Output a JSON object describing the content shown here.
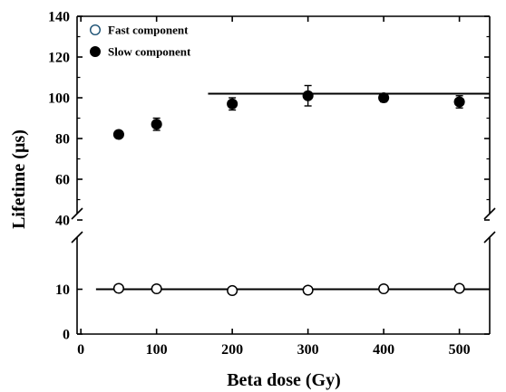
{
  "chart_data": {
    "type": "scatter",
    "xlabel": "Beta dose (Gy)",
    "ylabel": "Lifetime (µs)",
    "x_ticks": [
      0,
      100,
      200,
      300,
      400,
      500
    ],
    "y_ticks_upper": [
      40,
      60,
      80,
      100,
      120,
      140
    ],
    "y_ticks_lower": [
      0,
      10
    ],
    "xlim": [
      -5,
      540
    ],
    "y_axis_break": {
      "lower_range": [
        0,
        20
      ],
      "upper_range": [
        40,
        140
      ]
    },
    "legend_position": "top-left",
    "series": [
      {
        "name": "Fast component",
        "marker": "open-circle",
        "x": [
          50,
          100,
          200,
          300,
          400,
          500
        ],
        "y": [
          10.2,
          10.1,
          9.7,
          9.8,
          10.1,
          10.2
        ],
        "error": [
          0.4,
          0.4,
          0.4,
          0.4,
          0.4,
          0.4
        ]
      },
      {
        "name": "Slow component",
        "marker": "filled-circle",
        "x": [
          50,
          100,
          200,
          300,
          400,
          500
        ],
        "y": [
          82,
          87,
          97,
          101,
          100,
          98
        ],
        "error": [
          1.5,
          3,
          3,
          5,
          2,
          3
        ]
      }
    ],
    "reference_lines": [
      {
        "series": "Fast component",
        "y": 10,
        "x_range": [
          20,
          540
        ]
      },
      {
        "series": "Slow component",
        "y": 102,
        "x_range": [
          168,
          540
        ]
      }
    ],
    "colors": {
      "fast_marker": "#1a4f72",
      "slow_marker": "#000000",
      "line": "#000000"
    }
  }
}
